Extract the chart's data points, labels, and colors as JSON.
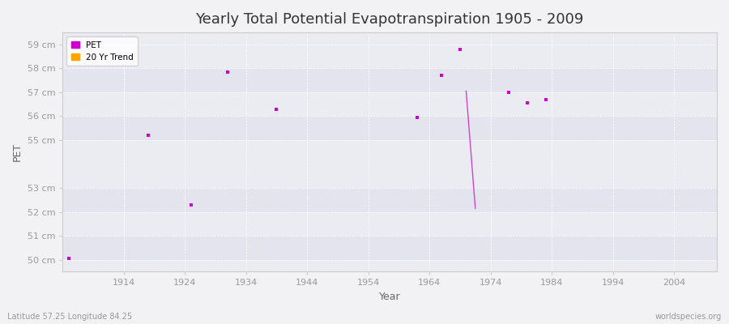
{
  "title": "Yearly Total Potential Evapotranspiration 1905 - 2009",
  "xlabel": "Year",
  "ylabel": "PET",
  "subtitle_left": "Latitude 57.25 Longitude 84.25",
  "subtitle_right": "worldspecies.org",
  "xlim": [
    1904,
    2011
  ],
  "ylim": [
    49.5,
    59.5
  ],
  "yticks": [
    50,
    51,
    52,
    53,
    55,
    56,
    57,
    58,
    59
  ],
  "ytick_labels": [
    "50 cm",
    "51 cm",
    "52 cm",
    "53 cm",
    "55 cm",
    "56 cm",
    "57 cm",
    "58 cm",
    "59 cm"
  ],
  "xticks": [
    1914,
    1924,
    1934,
    1944,
    1954,
    1964,
    1974,
    1984,
    1994,
    2004
  ],
  "pet_x": [
    1905,
    1918,
    1925,
    1931,
    1939,
    1962,
    1966,
    1969,
    1977,
    1980,
    1983
  ],
  "pet_y": [
    50.05,
    55.2,
    52.3,
    57.85,
    56.3,
    55.95,
    57.7,
    58.8,
    57.0,
    56.55,
    56.7
  ],
  "trend_x": [
    1970,
    1971.5
  ],
  "trend_y": [
    57.05,
    52.15
  ],
  "pet_color": "#cc00cc",
  "trend_color": "#cc44cc",
  "background_color": "#f2f2f5",
  "plot_bg_color": "#ebebf2",
  "grid_color": "#ffffff",
  "legend_pet_color": "#cc00cc",
  "legend_trend_color": "#ffa500",
  "marker_size": 3,
  "title_fontsize": 13,
  "axis_label_fontsize": 9,
  "tick_fontsize": 8,
  "band_colors": [
    "#e4e4ee",
    "#ebebf2"
  ]
}
